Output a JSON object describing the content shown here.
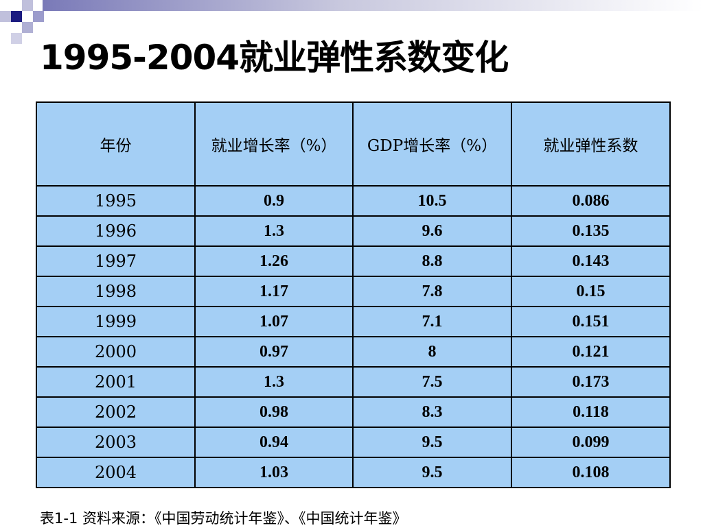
{
  "slide": {
    "title": "1995-2004就业弹性系数变化",
    "footnote": "表1-1  资料来源：《中国劳动统计年鉴》、《中国统计年鉴》"
  },
  "table": {
    "headers": [
      "年份",
      "就业增长率（%）",
      "GDP增长率（%）",
      "就业弹性系数"
    ],
    "rows": [
      [
        "1995",
        "0.9",
        "10.5",
        "0.086"
      ],
      [
        "1996",
        "1.3",
        "9.6",
        "0.135"
      ],
      [
        "1997",
        "1.26",
        "8.8",
        "0.143"
      ],
      [
        "1998",
        "1.17",
        "7.8",
        "0.15"
      ],
      [
        "1999",
        "1.07",
        "7.1",
        "0.151"
      ],
      [
        "2000",
        "0.97",
        "8",
        "0.121"
      ],
      [
        "2001",
        "1.3",
        "7.5",
        "0.173"
      ],
      [
        "2002",
        "0.98",
        "8.3",
        "0.118"
      ],
      [
        "2003",
        "0.94",
        "9.5",
        "0.099"
      ],
      [
        "2004",
        "1.03",
        "9.5",
        "0.108"
      ]
    ]
  },
  "colors": {
    "table_fill": "#a4cff5",
    "decoration_dark": "#1a1a80",
    "decoration_light": "#b8b8d8"
  }
}
